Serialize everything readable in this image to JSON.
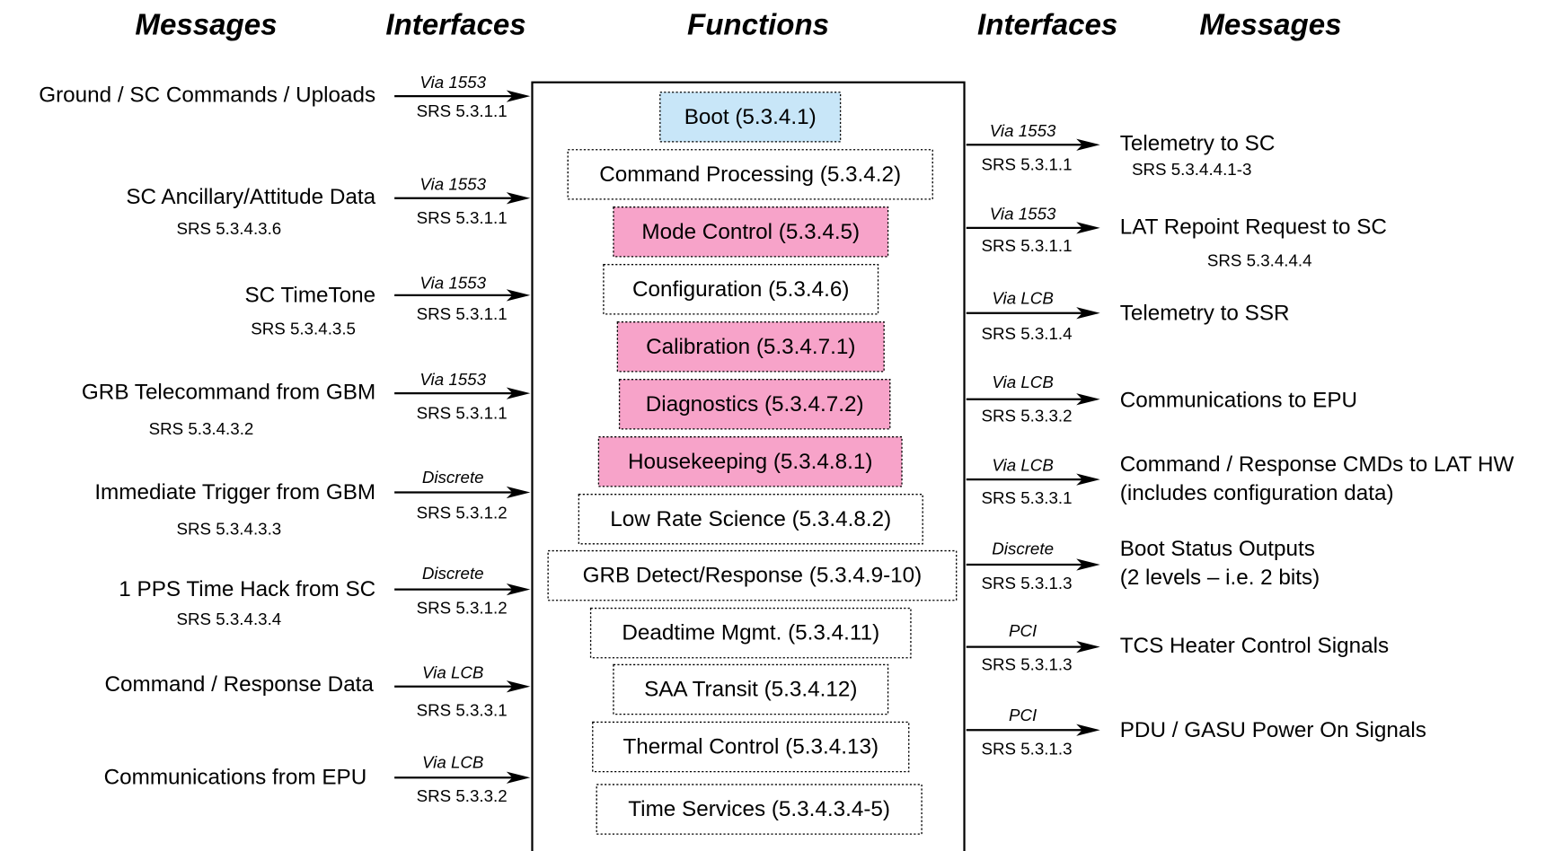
{
  "headers": [
    "Messages",
    "Interfaces",
    "Functions",
    "Interfaces",
    "Messages"
  ],
  "inputs": [
    {
      "message": "Ground / SC Commands / Uploads",
      "via": "Via 1553",
      "interface": "SRS 5.3.1.1"
    },
    {
      "message": "SC Ancillary/Attitude Data",
      "srs": "SRS 5.3.4.3.6",
      "via": "Via 1553",
      "interface": "SRS 5.3.1.1"
    },
    {
      "message": "SC TimeTone",
      "srs": "SRS 5.3.4.3.5",
      "via": "Via 1553",
      "interface": "SRS 5.3.1.1"
    },
    {
      "message": "GRB Telecommand from GBM",
      "srs": "SRS 5.3.4.3.2",
      "via": "Via 1553",
      "interface": "SRS 5.3.1.1"
    },
    {
      "message": "Immediate Trigger from GBM",
      "srs": "SRS 5.3.4.3.3",
      "via": "Discrete",
      "interface": "SRS 5.3.1.2"
    },
    {
      "message": "1 PPS Time Hack from SC",
      "srs": "SRS 5.3.4.3.4",
      "via": "Discrete",
      "interface": "SRS 5.3.1.2"
    },
    {
      "message": "Command / Response Data",
      "via": "Via LCB",
      "interface": "SRS 5.3.3.1"
    },
    {
      "message": "Communications from EPU",
      "via": "Via LCB",
      "interface": "SRS 5.3.3.2"
    }
  ],
  "functions": [
    {
      "label": "Boot (5.3.4.1)",
      "color": "#c8e6f8"
    },
    {
      "label": "Command Processing (5.3.4.2)"
    },
    {
      "label": "Mode Control (5.3.4.5)",
      "color": "#f7a3c9"
    },
    {
      "label": "Configuration (5.3.4.6)"
    },
    {
      "label": "Calibration (5.3.4.7.1)",
      "color": "#f7a3c9"
    },
    {
      "label": "Diagnostics (5.3.4.7.2)",
      "color": "#f7a3c9"
    },
    {
      "label": "Housekeeping (5.3.4.8.1)",
      "color": "#f7a3c9"
    },
    {
      "label": "Low Rate Science (5.3.4.8.2)"
    },
    {
      "label": "GRB Detect/Response (5.3.4.9-10)"
    },
    {
      "label": "Deadtime Mgmt. (5.3.4.11)"
    },
    {
      "label": "SAA Transit (5.3.4.12)"
    },
    {
      "label": "Thermal Control (5.3.4.13)"
    },
    {
      "label": "Time Services (5.3.4.3.4-5)"
    }
  ],
  "outputs": [
    {
      "via": "Via 1553",
      "interface": "SRS 5.3.1.1",
      "message": [
        "Telemetry to SC"
      ],
      "srs": "SRS 5.3.4.4.1-3"
    },
    {
      "via": "Via 1553",
      "interface": "SRS 5.3.1.1",
      "message": [
        "LAT Repoint Request to SC"
      ],
      "srs": "SRS 5.3.4.4.4"
    },
    {
      "via": "Via LCB",
      "interface": "SRS 5.3.1.4",
      "message": [
        "Telemetry to SSR"
      ]
    },
    {
      "via": "Via LCB",
      "interface": "SRS 5.3.3.2",
      "message": [
        "Communications to EPU"
      ]
    },
    {
      "via": "Via LCB",
      "interface": "SRS 5.3.3.1",
      "message": [
        "Command / Response CMDs to LAT HW",
        "(includes configuration data)"
      ]
    },
    {
      "via": "Discrete",
      "interface": "SRS 5.3.1.3",
      "message": [
        "Boot Status Outputs",
        "(2 levels – i.e. 2 bits)"
      ]
    },
    {
      "via": "PCI",
      "interface": "SRS 5.3.1.3",
      "message": [
        "TCS Heater Control Signals"
      ]
    },
    {
      "via": "PCI",
      "interface": "SRS 5.3.1.3",
      "message": [
        "PDU / GASU Power On Signals"
      ]
    }
  ]
}
